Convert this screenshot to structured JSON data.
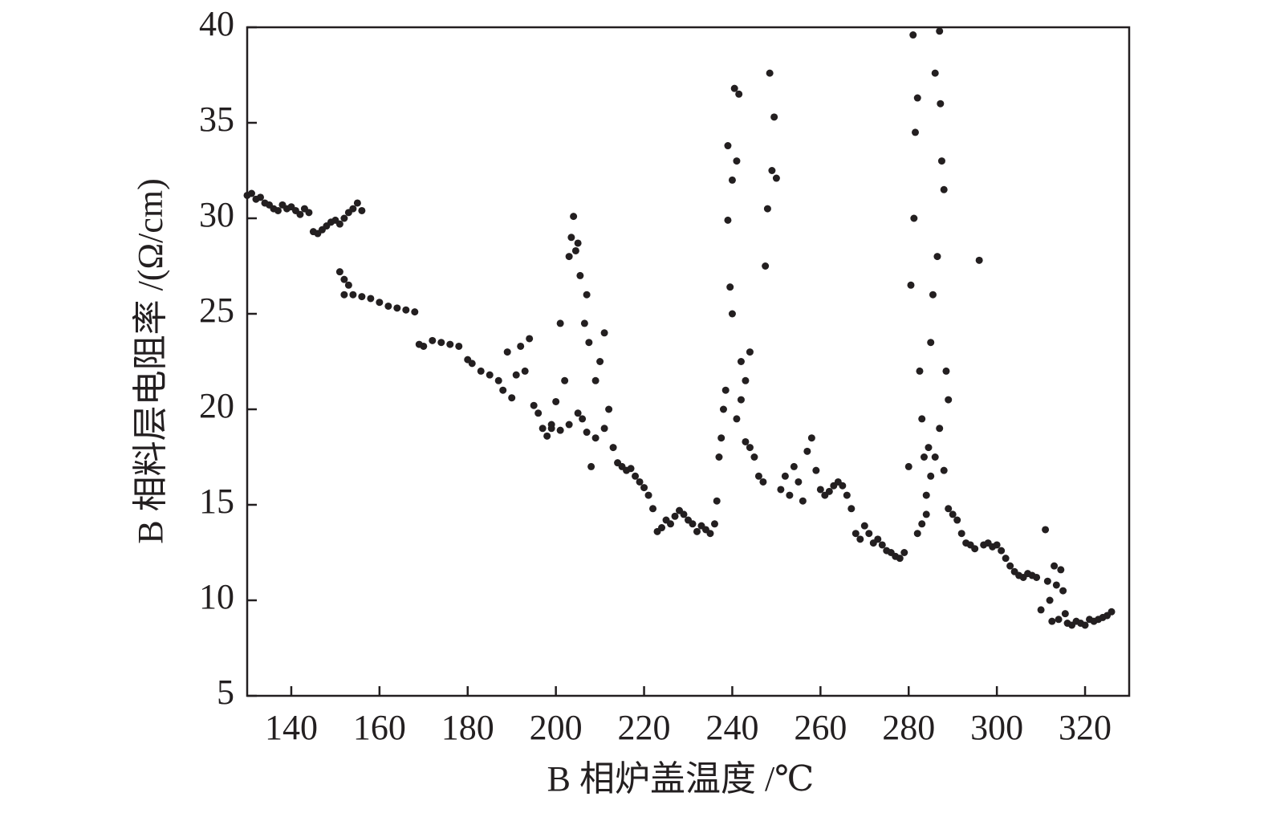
{
  "chart_data": {
    "type": "scatter",
    "x_label": "B 相炉盖温度 /℃",
    "y_label": "B 相料层电阻率 /(Ω/cm)",
    "xlim": [
      130,
      330
    ],
    "ylim": [
      5,
      40
    ],
    "xticks": [
      140,
      160,
      180,
      200,
      220,
      240,
      260,
      280,
      300,
      320
    ],
    "yticks": [
      5,
      10,
      15,
      20,
      25,
      30,
      35,
      40
    ],
    "color": "#231f20",
    "x": [
      130,
      131,
      132,
      133,
      134,
      135,
      136,
      137,
      138,
      139,
      140,
      141,
      142,
      143,
      144,
      145,
      146,
      147,
      148,
      149,
      150,
      151,
      152,
      153,
      154,
      155,
      156,
      151,
      152,
      153,
      152,
      154,
      156,
      158,
      160,
      162,
      164,
      166,
      168,
      169,
      170,
      172,
      174,
      176,
      178,
      180,
      181,
      183,
      185,
      187,
      188,
      189,
      190,
      191,
      192,
      193,
      194,
      195,
      196,
      197,
      198,
      199,
      200,
      201,
      202,
      203,
      204,
      205,
      206,
      207,
      203.5,
      204.5,
      205.5,
      206.5,
      207.5,
      208,
      209,
      210,
      211,
      212,
      199,
      201,
      203,
      205,
      207,
      209,
      211,
      213,
      214,
      215,
      216,
      217,
      218,
      219,
      220,
      221,
      222,
      223,
      224,
      225,
      226,
      227,
      228,
      229,
      230,
      231,
      232,
      233,
      234,
      235,
      236,
      236.5,
      237,
      237.5,
      238,
      238.5,
      239,
      239.5,
      240,
      240.5,
      239,
      240,
      241,
      241.5,
      242,
      243,
      244,
      245,
      246,
      247,
      247.5,
      248,
      248.5,
      249,
      249.5,
      250,
      244,
      243,
      242,
      241,
      251,
      252,
      253,
      254,
      255,
      256,
      257,
      258,
      259,
      260,
      261,
      262,
      263,
      264,
      265,
      266,
      267,
      268,
      269,
      270,
      271,
      272,
      273,
      274,
      275,
      276,
      277,
      278,
      279,
      280,
      280.5,
      281,
      281.2,
      281.5,
      282,
      282.5,
      283,
      283.5,
      284,
      284.5,
      285,
      285.5,
      286,
      286.5,
      287,
      287.2,
      287.5,
      288,
      288.5,
      289,
      282,
      283,
      284,
      285,
      286,
      287,
      288,
      289,
      290,
      291,
      292,
      293,
      294,
      295,
      296,
      297,
      298,
      299,
      300,
      301,
      302,
      303,
      304,
      305,
      306,
      307,
      308,
      309,
      310,
      311,
      312,
      313,
      314,
      315,
      316,
      317,
      318,
      319,
      320,
      321,
      322,
      323,
      324,
      325,
      326,
      311.5,
      312.5,
      313.5,
      314.5,
      315.5
    ],
    "y": [
      31.2,
      31.3,
      31.0,
      31.1,
      30.8,
      30.7,
      30.5,
      30.4,
      30.7,
      30.5,
      30.6,
      30.4,
      30.2,
      30.5,
      30.3,
      29.3,
      29.2,
      29.4,
      29.6,
      29.8,
      29.9,
      29.7,
      30.0,
      30.3,
      30.5,
      30.8,
      30.4,
      27.2,
      26.8,
      26.5,
      26.0,
      26.0,
      25.9,
      25.8,
      25.6,
      25.4,
      25.3,
      25.2,
      25.1,
      23.4,
      23.3,
      23.6,
      23.5,
      23.4,
      23.3,
      22.6,
      22.4,
      22.0,
      21.8,
      21.5,
      21.0,
      23.0,
      20.6,
      21.8,
      23.3,
      22.0,
      23.7,
      20.2,
      19.8,
      19.0,
      18.6,
      19.2,
      20.4,
      24.5,
      21.5,
      28.0,
      30.1,
      28.7,
      19.5,
      26.0,
      29.0,
      28.3,
      27.0,
      24.5,
      23.5,
      17.0,
      21.5,
      22.5,
      24.0,
      20.0,
      19.0,
      18.9,
      19.2,
      19.8,
      18.8,
      18.5,
      19.0,
      18.0,
      17.2,
      17.0,
      16.8,
      16.9,
      16.5,
      16.2,
      15.9,
      15.5,
      14.8,
      13.6,
      13.8,
      14.2,
      14.0,
      14.4,
      14.7,
      14.5,
      14.2,
      14.0,
      13.6,
      13.9,
      13.7,
      13.5,
      14.0,
      15.2,
      17.5,
      18.5,
      20.0,
      21.0,
      33.8,
      26.4,
      32.0,
      36.8,
      29.9,
      25.0,
      33.0,
      36.5,
      22.5,
      18.3,
      18.0,
      17.5,
      16.5,
      16.2,
      27.5,
      30.5,
      37.6,
      32.5,
      35.3,
      32.1,
      23.0,
      21.5,
      20.5,
      19.5,
      15.8,
      16.5,
      15.5,
      17.0,
      16.2,
      15.2,
      17.8,
      18.5,
      16.8,
      15.8,
      15.5,
      15.7,
      16.0,
      16.2,
      16.0,
      15.5,
      14.8,
      13.5,
      13.2,
      13.9,
      13.5,
      13.0,
      13.2,
      12.9,
      12.6,
      12.5,
      12.3,
      12.2,
      12.5,
      17.0,
      26.5,
      39.6,
      30.0,
      34.5,
      36.3,
      22.0,
      19.5,
      17.5,
      15.5,
      18.0,
      23.5,
      26.0,
      37.6,
      28.0,
      39.8,
      36.0,
      33.0,
      31.5,
      22.0,
      20.5,
      13.5,
      14.0,
      14.5,
      16.5,
      17.5,
      19.0,
      16.8,
      14.8,
      14.5,
      14.2,
      13.5,
      13.0,
      12.9,
      12.7,
      27.8,
      12.9,
      13.0,
      12.8,
      12.9,
      12.6,
      12.2,
      11.8,
      11.5,
      11.3,
      11.2,
      11.4,
      11.3,
      11.2,
      9.5,
      13.7,
      10.0,
      11.8,
      9.0,
      10.5,
      8.8,
      8.7,
      8.9,
      8.8,
      8.7,
      9.0,
      8.9,
      9.0,
      9.1,
      9.2,
      9.4,
      11.0,
      8.9,
      10.8,
      11.6,
      9.3
    ]
  }
}
